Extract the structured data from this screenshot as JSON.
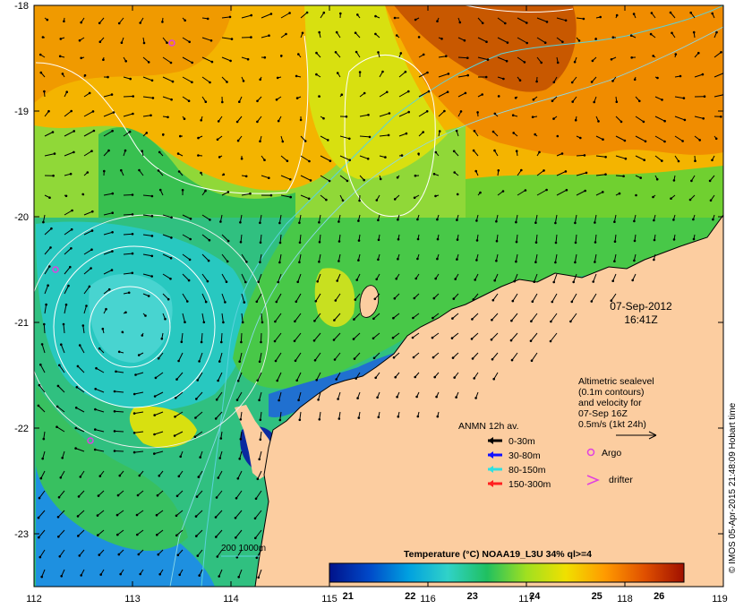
{
  "map": {
    "date": "07-Sep-2012",
    "time": "16:41Z",
    "lat_ticks": [
      "-18",
      "-19",
      "-20",
      "-21",
      "-22",
      "-23"
    ],
    "lon_ticks": [
      "112",
      "113",
      "114",
      "115",
      "116",
      "117",
      "118",
      "119"
    ],
    "lat_range": [
      -23.5,
      -18
    ],
    "lon_range": [
      112,
      119
    ],
    "colors": {
      "land": "#fccda0",
      "iso_contour": "#ffffff",
      "coastline": "#5ad2dc"
    }
  },
  "altimetry_note": {
    "lines": [
      "Altimetric sealevel",
      "(0.1m contours)",
      "and velocity for",
      "07-Sep 16Z",
      "0.5m/s (1kt 24h)"
    ]
  },
  "anmn": {
    "title": "ANMN 12h av.",
    "items": [
      {
        "label": "0-30m",
        "color": "#000000"
      },
      {
        "label": "30-80m",
        "color": "#1010ff"
      },
      {
        "label": "80-150m",
        "color": "#30e0e0"
      },
      {
        "label": "150-300m",
        "color": "#ff2020"
      }
    ]
  },
  "markers": {
    "argo_label": "Argo",
    "drifter_label": "drifter",
    "argo_color": "#e040e0",
    "drifter_color": "#e040e0"
  },
  "colorbar": {
    "title": "Temperature (°C) NOAA19_L3U 34% ql>=4",
    "ticks": [
      "21",
      "22",
      "23",
      "24",
      "25",
      "26"
    ],
    "range": [
      20.7,
      26.4
    ],
    "stops": [
      "#00128a",
      "#0048c8",
      "#00a0e0",
      "#30d2c8",
      "#20c060",
      "#a0e020",
      "#f0e000",
      "#ff9a00",
      "#e05000",
      "#a01000"
    ]
  },
  "isobath_label": "200  1000m",
  "stamp": "© IMOS 05-Apr-2015 21:48:09 Hobart time"
}
